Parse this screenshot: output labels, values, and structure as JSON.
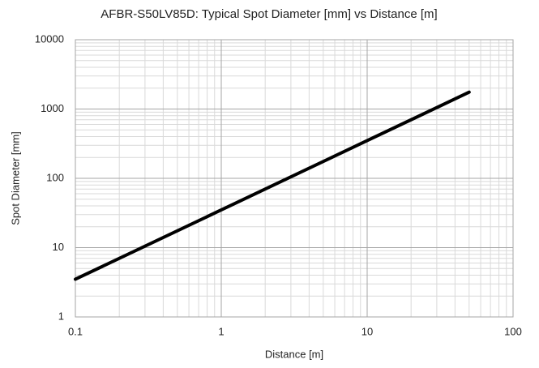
{
  "chart_data": {
    "type": "line",
    "title": "AFBR-S50LV85D: Typical Spot Diameter [mm] vs Distance [m]",
    "x_label": "Distance [m]",
    "y_label": "Spot Diameter [mm]",
    "x": [
      0.1,
      1,
      10,
      50
    ],
    "series": [
      {
        "name": "Spot Diameter",
        "color": "#000000",
        "values": [
          3.5,
          35,
          350,
          1750
        ]
      }
    ],
    "xlim": [
      0.1,
      100
    ],
    "xticks": [
      0.1,
      1,
      10,
      100
    ],
    "ylim": [
      1,
      10000
    ],
    "yticks": [
      1,
      10,
      100,
      1000,
      10000
    ],
    "xscale": "log",
    "yscale": "log",
    "grid": true,
    "minor_grid": true
  }
}
